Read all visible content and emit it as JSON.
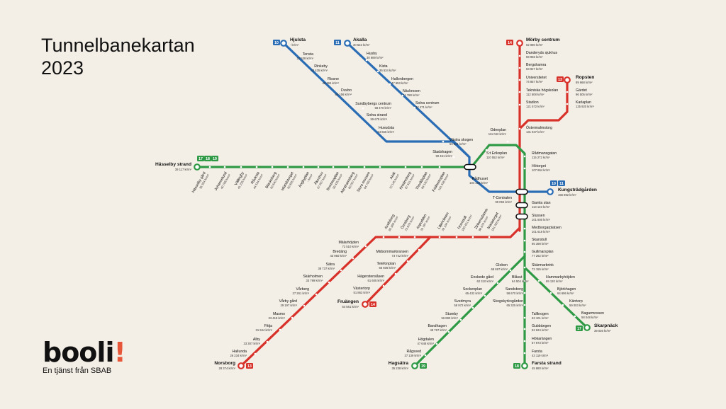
{
  "title": {
    "line1": "Tunnelbanekartan",
    "line2": "2023"
  },
  "logo": {
    "word": "booli",
    "mark": "!",
    "tagline": "En tjänst från SBAB"
  },
  "unit": "kr/m²",
  "colors": {
    "blue": "#2a6db5",
    "red": "#d7312a",
    "green": "#2f9a46",
    "background": "#f4efe6"
  },
  "lines": {
    "blue_west": {
      "color": "blue",
      "badge": "10"
    },
    "blue_north": {
      "color": "blue",
      "badge": "11"
    },
    "red_north": {
      "color": "red",
      "badge": "14"
    },
    "red_ropsten": {
      "color": "red",
      "badge": "13"
    },
    "green_west": {
      "color": "green",
      "badges": [
        "17",
        "18",
        "19"
      ]
    },
    "blue_east": {
      "color": "blue",
      "badges": [
        "10",
        "11"
      ]
    },
    "red_fruangen": {
      "color": "red",
      "badge": "14"
    },
    "red_norsborg": {
      "color": "red",
      "badge": "13"
    },
    "green_hagsatra": {
      "color": "green",
      "badge": "19"
    },
    "green_farsta": {
      "color": "green",
      "badge": "18"
    },
    "green_skarpnack": {
      "color": "green",
      "badge": "17"
    }
  },
  "stations": [
    {
      "name": "Hjulsta",
      "price": "- kr/m²",
      "terminal": true
    },
    {
      "name": "Tensta",
      "price": "22 538 kr/m²"
    },
    {
      "name": "Rinkeby",
      "price": "43 435 kr/m²"
    },
    {
      "name": "Rissne",
      "price": "45 494 kr/m²"
    },
    {
      "name": "Duvbo",
      "price": "65 156 kr/m²"
    },
    {
      "name": "Sundbybergs centrum",
      "price": "68 470 kr/m²"
    },
    {
      "name": "Solna strand",
      "price": "59 678 kr/m²"
    },
    {
      "name": "Huvudsta",
      "price": "54 665 kr/m²"
    },
    {
      "name": "Akalla",
      "price": "30 522 kr/m²",
      "terminal": true
    },
    {
      "name": "Husby",
      "price": "30 889 kr/m²"
    },
    {
      "name": "Kista",
      "price": "36 534 kr/m²"
    },
    {
      "name": "Hallonbergen",
      "price": "47 653 kr/m²"
    },
    {
      "name": "Näckrosen",
      "price": "71 788 kr/m²"
    },
    {
      "name": "Solna centrum",
      "price": "62 471 kr/m²"
    },
    {
      "name": "Västra skogen",
      "price": "59 821 kr/m²"
    },
    {
      "name": "Stadshagen",
      "price": "90 451 kr/m²"
    },
    {
      "name": "Mörby centrum",
      "price": "62 080 kr/m²",
      "terminal": true
    },
    {
      "name": "Danderyds sjukhus",
      "price": "59 956 kr/m²"
    },
    {
      "name": "Bergshamra",
      "price": "63 927 kr/m²"
    },
    {
      "name": "Universitetet",
      "price": "74 857 kr/m²"
    },
    {
      "name": "Tekniska högskolan",
      "price": "112 508 kr/m²"
    },
    {
      "name": "Stadion",
      "price": "121 572 kr/m²"
    },
    {
      "name": "Östermalmstorg",
      "price": "131 947 kr/m²"
    },
    {
      "name": "Ropsten",
      "price": "89 668 kr/m²",
      "terminal": true
    },
    {
      "name": "Gärdet",
      "price": "96 505 kr/m²"
    },
    {
      "name": "Karlaplan",
      "price": "125 920 kr/m²"
    },
    {
      "name": "Hässelby strand",
      "price": "39 117 kr/m²",
      "terminal": true
    },
    {
      "name": "Hässelby gård",
      "price": "36 324 kr/m²"
    },
    {
      "name": "Johannelund",
      "price": "40 768 kr/m²"
    },
    {
      "name": "Vällingby",
      "price": "41 235 kr/m²"
    },
    {
      "name": "Råcksta",
      "price": "44 534 kr/m²"
    },
    {
      "name": "Blackeberg",
      "price": "50 640 kr/m²"
    },
    {
      "name": "Islandstorget",
      "price": "50 835 kr/m²"
    },
    {
      "name": "Ängbyplan",
      "price": "- kr/m²"
    },
    {
      "name": "Åkeshov",
      "price": "57 057 kr/m²"
    },
    {
      "name": "Brommaplan",
      "price": "59 435 kr/m²"
    },
    {
      "name": "Abrahamsberg",
      "price": "60 057 kr/m²"
    },
    {
      "name": "Stora mossen",
      "price": "64 709 kr/m²"
    },
    {
      "name": "Alvik",
      "price": "70 145 kr/m²"
    },
    {
      "name": "Kristineberg",
      "price": "87 551 kr/m²"
    },
    {
      "name": "Thorildsplan",
      "price": "99 150 kr/m²"
    },
    {
      "name": "Fridhemsplan",
      "price": "101 556 kr/m²"
    },
    {
      "name": "Odenplan",
      "price": "111 042 kr/m²"
    },
    {
      "name": "S:t Eriksplan",
      "price": "110 552 kr/m²"
    },
    {
      "name": "Rådmansgatan",
      "price": "115 272 kr/m²"
    },
    {
      "name": "Hötorget",
      "price": "107 864 kr/m²"
    },
    {
      "name": "Rådhuset",
      "price": "104 184 kr/m²"
    },
    {
      "name": "T-Centralen",
      "price": "99 094 kr/m²"
    },
    {
      "name": "Kungsträdgården",
      "price": "156 892 kr/m²",
      "terminal": true
    },
    {
      "name": "Gamla stan",
      "price": "113 123 kr/m²"
    },
    {
      "name": "Slussen",
      "price": "101 800 kr/m²"
    },
    {
      "name": "Medborgarplatsen",
      "price": "101 619 kr/m²"
    },
    {
      "name": "Skanstull",
      "price": "95 398 kr/m²"
    },
    {
      "name": "Gullmarsplan",
      "price": "77 262 kr/m²"
    },
    {
      "name": "Skärmarbrink",
      "price": "72 155 kr/m²"
    },
    {
      "name": "Hammarbyhöjden",
      "price": "69 120 kr/m²"
    },
    {
      "name": "Björkhagen",
      "price": "64 696 kr/m²"
    },
    {
      "name": "Kärrtorp",
      "price": "59 003 kr/m²"
    },
    {
      "name": "Bagarmossen",
      "price": "58 048 kr/m²"
    },
    {
      "name": "Skarpnäck",
      "price": "39 036 kr/m²",
      "terminal": true
    },
    {
      "name": "Globen",
      "price": "68 697 kr/m²"
    },
    {
      "name": "Blåsut",
      "price": "64 504 kr/m²"
    },
    {
      "name": "Sandsborg",
      "price": "58 670 kr/m²"
    },
    {
      "name": "Skogskyrkogården",
      "price": "65 325 kr/m²"
    },
    {
      "name": "Tallkrogen",
      "price": "63 101 kr/m²"
    },
    {
      "name": "Gubbängen",
      "price": "52 624 kr/m²"
    },
    {
      "name": "Hökarängen",
      "price": "57 873 kr/m²"
    },
    {
      "name": "Farsta",
      "price": "43 119 kr/m²"
    },
    {
      "name": "Farsta strand",
      "price": "45 880 kr/m²",
      "terminal": true
    },
    {
      "name": "Enskede gård",
      "price": "62 310 kr/m²"
    },
    {
      "name": "Sockenplan",
      "price": "65 432 kr/m²"
    },
    {
      "name": "Svedmyra",
      "price": "58 972 kr/m²"
    },
    {
      "name": "Stureby",
      "price": "56 890 kr/m²"
    },
    {
      "name": "Bandhagen",
      "price": "48 767 kr/m²"
    },
    {
      "name": "Högdalen",
      "price": "47 648 kr/m²"
    },
    {
      "name": "Rågsved",
      "price": "37 139 kr/m²"
    },
    {
      "name": "Hagsätra",
      "price": "35 238 kr/m²",
      "terminal": true
    },
    {
      "name": "Mariatorget",
      "price": "101 320 kr/m²"
    },
    {
      "name": "Zinkensdamm",
      "price": "98 670 kr/m²"
    },
    {
      "name": "Hornstull",
      "price": "100 421 kr/m²"
    },
    {
      "name": "Liljeholmen",
      "price": "78 134 kr/m²"
    },
    {
      "name": "Aspudden",
      "price": "76 787 kr/m²"
    },
    {
      "name": "Örnsberg",
      "price": "73 876 kr/m²"
    },
    {
      "name": "Axelsberg",
      "price": "65 360 kr/m²"
    },
    {
      "name": "Midsommarkransen",
      "price": "73 742 kr/m²"
    },
    {
      "name": "Telefonplan",
      "price": "66 606 kr/m²"
    },
    {
      "name": "Hägerstensåsen",
      "price": "61 605 kr/m²"
    },
    {
      "name": "Västertorp",
      "price": "51 863 kr/m²"
    },
    {
      "name": "Fruängen",
      "price": "54 561 kr/m²",
      "terminal": true
    },
    {
      "name": "Mälarhöjden",
      "price": "72 510 kr/m²"
    },
    {
      "name": "Bredäng",
      "price": "43 950 kr/m²"
    },
    {
      "name": "Sätra",
      "price": "38 737 kr/m²"
    },
    {
      "name": "Skärholmen",
      "price": "33 799 kr/m²"
    },
    {
      "name": "Vårberg",
      "price": "27 261 kr/m²"
    },
    {
      "name": "Vårby gård",
      "price": "29 197 kr/m²"
    },
    {
      "name": "Masmo",
      "price": "33 418 kr/m²"
    },
    {
      "name": "Fittja",
      "price": "31 944 kr/m²"
    },
    {
      "name": "Alby",
      "price": "33 307 kr/m²"
    },
    {
      "name": "Hallunda",
      "price": "26 234 kr/m²"
    },
    {
      "name": "Norsborg",
      "price": "28 374 kr/m²",
      "terminal": true
    }
  ]
}
